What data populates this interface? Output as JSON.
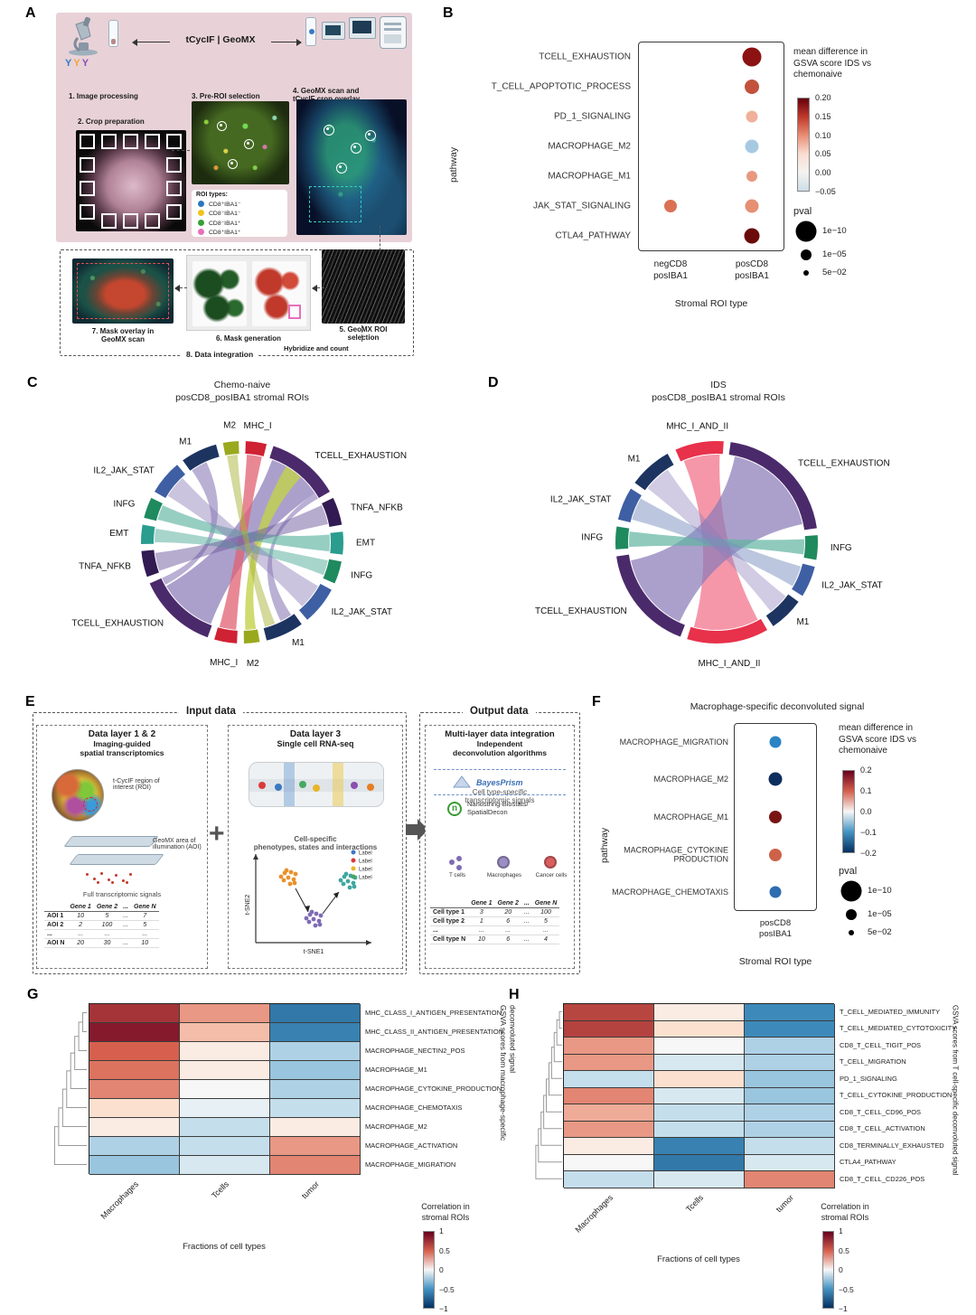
{
  "panelA": {
    "label": "A",
    "workflow_left": "tCycIF",
    "workflow_sep": "|",
    "workflow_right": "GeoMX",
    "steps": {
      "s1": "1. Image processing",
      "s2": "2. Crop preparation",
      "s3": "3. Pre-ROI selection",
      "s4": "4. GeoMX scan and\ntCycIF crop overlay",
      "s5": "5. GeoMX ROI\nselection",
      "s6": "6. Mask generation",
      "s7": "7. Mask overlay in\nGeoMX scan",
      "s8": "8. Data integration",
      "hybridize": "Hybridize and count"
    },
    "roi_types": {
      "title": "ROI types:",
      "items": [
        {
          "label": "CD8⁺IBA1⁻",
          "color": "#2878be"
        },
        {
          "label": "CD8⁻IBA1⁻",
          "color": "#f2c21c"
        },
        {
          "label": "CD8⁻IBA1⁺",
          "color": "#37a137"
        },
        {
          "label": "CD8⁺IBA1⁺",
          "color": "#e96fb9"
        }
      ]
    }
  },
  "panelB": {
    "label": "B",
    "chart_data": {
      "type": "dotplot",
      "ylabel": "pathway",
      "xlabel": "Stromal ROI type",
      "rows": [
        "TCELL_EXHAUSTION",
        "T_CELL_APOPTOTIC_PROCESS",
        "PD_1_SIGNALING",
        "MACROPHAGE_M2",
        "MACROPHAGE_M1",
        "JAK_STAT_SIGNALING",
        "CTLA4_PATHWAY"
      ],
      "cols": [
        "negCD8\nposIBA1",
        "posCD8\nposIBA1"
      ],
      "points": [
        {
          "row": 0,
          "col": 1,
          "mean_diff": 0.2,
          "size": 21,
          "color": "#8d1212"
        },
        {
          "row": 1,
          "col": 1,
          "mean_diff": 0.12,
          "size": 16,
          "color": "#c2523c"
        },
        {
          "row": 2,
          "col": 1,
          "mean_diff": 0.04,
          "size": 13,
          "color": "#f0b09b"
        },
        {
          "row": 3,
          "col": 1,
          "mean_diff": -0.04,
          "size": 15,
          "color": "#a6c9e2"
        },
        {
          "row": 4,
          "col": 1,
          "mean_diff": 0.06,
          "size": 12,
          "color": "#e8987f"
        },
        {
          "row": 5,
          "col": 0,
          "mean_diff": 0.09,
          "size": 14,
          "color": "#da7154"
        },
        {
          "row": 5,
          "col": 1,
          "mean_diff": 0.07,
          "size": 15,
          "color": "#e68f73"
        },
        {
          "row": 6,
          "col": 1,
          "mean_diff": 0.22,
          "size": 17,
          "color": "#6b0a0a"
        }
      ],
      "legend": {
        "color_title": "mean difference in\nGSVA score IDS vs\nchemonaive",
        "color_ticks": [
          "0.20",
          "0.15",
          "0.10",
          "0.05",
          "0.00",
          "−0.05"
        ],
        "gradient": [
          "#67000d",
          "#c0392b",
          "#e98d74",
          "#f9ddd2",
          "#f5f2f0",
          "#ccdde9"
        ],
        "size_title": "pval",
        "sizes": [
          {
            "label": "1e−10",
            "d": 23
          },
          {
            "label": "1e−05",
            "d": 12
          },
          {
            "label": "5e−02",
            "d": 6
          }
        ]
      }
    }
  },
  "panelC": {
    "label": "C",
    "title1": "Chemo-naive",
    "title2": "posCD8_posIBA1 stromal ROIs",
    "chart_data": {
      "type": "chord",
      "sectors": [
        {
          "label": "MHC_I",
          "start": 2,
          "end": 14,
          "color": "#cf2233"
        },
        {
          "label": "TCELL_EXHAUSTION",
          "start": 18,
          "end": 60,
          "color": "#4b2a6b"
        },
        {
          "label": "TNFA_NFKB",
          "start": 64,
          "end": 80,
          "color": "#321a52"
        },
        {
          "label": "EMT",
          "start": 84,
          "end": 97,
          "color": "#2a9d8f"
        },
        {
          "label": "INFG",
          "start": 101,
          "end": 114,
          "color": "#1e8a5e"
        },
        {
          "label": "IL2_JAK_STAT",
          "start": 118,
          "end": 140,
          "color": "#3e5fa3"
        },
        {
          "label": "M1",
          "start": 144,
          "end": 166,
          "color": "#1d3461"
        },
        {
          "label": "M2",
          "start": 170,
          "end": 179,
          "color": "#9aa81e"
        },
        {
          "label": "MHC_I",
          "start": 183,
          "end": 196,
          "color": "#cf2233"
        },
        {
          "label": "TCELL_EXHAUSTION",
          "start": 200,
          "end": 246,
          "color": "#4b2a6b"
        },
        {
          "label": "TNFA_NFKB",
          "start": 250,
          "end": 265,
          "color": "#321a52"
        },
        {
          "label": "EMT",
          "start": 269,
          "end": 280,
          "color": "#2a9d8f"
        },
        {
          "label": "INFG",
          "start": 284,
          "end": 296,
          "color": "#1e8a5e"
        },
        {
          "label": "IL2_JAK_STAT",
          "start": 300,
          "end": 320,
          "color": "#3e5fa3"
        },
        {
          "label": "M1",
          "start": 324,
          "end": 345,
          "color": "#1d3461"
        },
        {
          "label": "M2",
          "start": 349,
          "end": 358,
          "color": "#9aa81e"
        }
      ],
      "ribbons": [
        {
          "a": [
            201,
            240
          ],
          "b": [
            20,
            56
          ],
          "color": "#8b7cb8",
          "opacity": 0.72
        },
        {
          "a": [
            241,
            246
          ],
          "b": [
            325,
            336
          ],
          "color": "#8b7cb8",
          "opacity": 0.6
        },
        {
          "a": [
            56,
            60
          ],
          "b": [
            146,
            154
          ],
          "color": "#8b7cb8",
          "opacity": 0.6
        },
        {
          "a": [
            184,
            195
          ],
          "b": [
            3,
            13
          ],
          "color": "#e26071",
          "opacity": 0.75
        },
        {
          "a": [
            171,
            178
          ],
          "b": [
            30,
            42
          ],
          "color": "#c3d24a",
          "opacity": 0.8
        },
        {
          "a": [
            85,
            96
          ],
          "b": [
            285,
            295
          ],
          "color": "#5fb3a1",
          "opacity": 0.65
        },
        {
          "a": [
            270,
            279
          ],
          "b": [
            102,
            112
          ],
          "color": "#5fb3a1",
          "opacity": 0.55
        },
        {
          "a": [
            302,
            317
          ],
          "b": [
            120,
            137
          ],
          "color": "#8b7cb8",
          "opacity": 0.45
        },
        {
          "a": [
            251,
            263
          ],
          "b": [
            65,
            78
          ],
          "color": "#6d5a9e",
          "opacity": 0.5
        },
        {
          "a": [
            350,
            357
          ],
          "b": [
            158,
            165
          ],
          "color": "#aab43a",
          "opacity": 0.5
        }
      ]
    }
  },
  "panelD": {
    "label": "D",
    "title1": "IDS",
    "title2": "posCD8_posIBA1 stromal ROIs",
    "chart_data": {
      "type": "chord",
      "sectors": [
        {
          "label": "MHC_I_AND_II",
          "start": -24,
          "end": 4,
          "color": "#e8314a"
        },
        {
          "label": "TCELL_EXHAUSTION",
          "start": 8,
          "end": 82,
          "color": "#4b2a6b"
        },
        {
          "label": "INFG",
          "start": 86,
          "end": 100,
          "color": "#1e8a5e"
        },
        {
          "label": "IL2_JAK_STAT",
          "start": 104,
          "end": 122,
          "color": "#3e5fa3"
        },
        {
          "label": "M1",
          "start": 126,
          "end": 146,
          "color": "#1d3461"
        },
        {
          "label": "MHC_I_AND_II",
          "start": 150,
          "end": 197,
          "color": "#e8314a"
        },
        {
          "label": "TCELL_EXHAUSTION",
          "start": 201,
          "end": 262,
          "color": "#4b2a6b"
        },
        {
          "label": "INFG",
          "start": 266,
          "end": 279,
          "color": "#1e8a5e"
        },
        {
          "label": "IL2_JAK_STAT",
          "start": 283,
          "end": 302,
          "color": "#3e5fa3"
        },
        {
          "label": "M1",
          "start": 306,
          "end": 331,
          "color": "#1d3461"
        }
      ],
      "ribbons": [
        {
          "a": [
            152,
            195
          ],
          "b": [
            -22,
            2
          ],
          "color": "#f27d93",
          "opacity": 0.8
        },
        {
          "a": [
            205,
            258
          ],
          "b": [
            12,
            78
          ],
          "color": "#8b7cb8",
          "opacity": 0.72
        },
        {
          "a": [
            88,
            98
          ],
          "b": [
            267,
            277
          ],
          "color": "#5fb3a1",
          "opacity": 0.7
        },
        {
          "a": [
            106,
            120
          ],
          "b": [
            285,
            300
          ],
          "color": "#7a8fc0",
          "opacity": 0.5
        },
        {
          "a": [
            128,
            142
          ],
          "b": [
            308,
            326
          ],
          "color": "#8b7cb8",
          "opacity": 0.4
        }
      ]
    }
  },
  "panelE": {
    "label": "E",
    "header_input": "Input data",
    "header_output": "Output data",
    "plus_sign": "+",
    "box1": {
      "title": "Data layer 1 & 2",
      "subtitle": "Imaging-guided\nspatial transcriptomics",
      "roi_caption": "t-CycIF region of\ninterest (ROI)",
      "aoi_caption": "GeoMX area of\nillumination (AOI)",
      "signals_caption": "Full transcriptomic signals",
      "table": {
        "headers": [
          "",
          "Gene 1",
          "Gene 2",
          "...",
          "Gene N"
        ],
        "rows": [
          [
            "AOI 1",
            "10",
            "5",
            "...",
            "7"
          ],
          [
            "AOI 2",
            "2",
            "100",
            "...",
            "5"
          ],
          [
            "...",
            "...",
            "...",
            "",
            "..."
          ],
          [
            "AOI N",
            "20",
            "30",
            "...",
            "10"
          ]
        ]
      }
    },
    "box2": {
      "title": "Data layer 3",
      "subtitle": "Single cell RNA-seq",
      "caption": "Cell-specific\nphenotypes, states and interactions",
      "tsne_x": "t-SNE1",
      "tsne_y": "t-SNE2",
      "legend_label": "Label",
      "legend_colors": [
        "#3b78c3",
        "#d93a3a",
        "#e8b52a",
        "#48a860"
      ],
      "cell_colors": [
        "#d93a3a",
        "#3b78c3",
        "#48a860",
        "#e8b52a",
        "#8a4fb0",
        "#e67e22"
      ]
    },
    "box3": {
      "title": "Multi-layer data integration",
      "subtitle": "Independent\ndeconvolution algorithms",
      "algo1": "BayesPrism",
      "algo2_logo": "n",
      "algo2_line1": "Nanostring-Biostats/",
      "algo2_line2": "SpatialDecon",
      "signals_caption": "Cell type-specific\ntranscriptomic signals",
      "cells": [
        {
          "label": "T cells",
          "color": "#7e6bb5"
        },
        {
          "label": "Macrophages",
          "color": "#9b8ec4"
        },
        {
          "label": "Cancer cells",
          "color": "#d95f5f"
        }
      ],
      "table": {
        "headers": [
          "",
          "Gene 1",
          "Gene 2",
          "...",
          "Gene N"
        ],
        "rows": [
          [
            "Cell type 1",
            "3",
            "20",
            "...",
            "100"
          ],
          [
            "Cell type 2",
            "1",
            "6",
            "...",
            "5"
          ],
          [
            "...",
            "...",
            "...",
            "",
            "..."
          ],
          [
            "Cell type N",
            "10",
            "6",
            "...",
            "4"
          ]
        ]
      }
    }
  },
  "panelF": {
    "label": "F",
    "title": "Macrophage-specific deconvoluted signal",
    "chart_data": {
      "type": "dotplot",
      "ylabel": "pathway",
      "xlabel": "Stromal ROI type",
      "sig_marker": "*",
      "rows": [
        "MACROPHAGE_MIGRATION",
        "MACROPHAGE_M2",
        "MACROPHAGE_M1",
        "MACROPHAGE_CYTOKINE\nPRODUCTION",
        "MACROPHAGE_CHEMOTAXIS"
      ],
      "cols": [
        "posCD8\nposIBA1"
      ],
      "points": [
        {
          "row": 0,
          "col": 0,
          "mean_diff": -0.15,
          "size": 13,
          "color": "#2b83c4"
        },
        {
          "row": 1,
          "col": 0,
          "mean_diff": -0.22,
          "size": 15,
          "color": "#0d2d5e"
        },
        {
          "row": 2,
          "col": 0,
          "mean_diff": 0.2,
          "size": 14,
          "color": "#7a1414"
        },
        {
          "row": 3,
          "col": 0,
          "mean_diff": 0.12,
          "size": 14,
          "color": "#cd6249"
        },
        {
          "row": 4,
          "col": 0,
          "mean_diff": -0.13,
          "size": 13,
          "color": "#2f6db1"
        }
      ],
      "legend": {
        "color_title": "mean difference in\nGSVA score IDS vs\nchemonaive",
        "color_ticks": [
          "0.2",
          "0.1",
          "0.0",
          "−0.1",
          "−0.2"
        ],
        "gradient": [
          "#67001f",
          "#d6604d",
          "#f7f7f7",
          "#4393c3",
          "#053061"
        ],
        "size_title": "pval",
        "sizes": [
          {
            "label": "1e−10",
            "d": 23
          },
          {
            "label": "1e−05",
            "d": 12
          },
          {
            "label": "5e−02",
            "d": 6
          }
        ]
      }
    }
  },
  "panelG": {
    "label": "G",
    "chart_data": {
      "type": "heatmap",
      "cols": [
        "Macrophages",
        "Tcells",
        "tumor"
      ],
      "rows": [
        "MHC_CLASS_I_ANTIGEN_PRESENTATION",
        "MHC_CLASS_II_ANTIGEN_PRESENTATION",
        "MACROPHAGE_NECTIN2_POS",
        "MACROPHAGE_M1",
        "MACROPHAGE_CYTOKINE_PRODUCTION",
        "MACROPHAGE_CHEMOTAXIS",
        "MACROPHAGE_M2",
        "MACROPHAGE_ACTIVATION",
        "MACROPHAGE_MIGRATION"
      ],
      "values": [
        [
          0.7,
          0.3,
          -0.6
        ],
        [
          0.85,
          0.2,
          -0.55
        ],
        [
          0.45,
          0.05,
          -0.2
        ],
        [
          0.4,
          0.05,
          -0.25
        ],
        [
          0.35,
          0.0,
          -0.2
        ],
        [
          0.1,
          -0.05,
          -0.15
        ],
        [
          0.05,
          -0.15,
          0.05
        ],
        [
          -0.2,
          -0.15,
          0.3
        ],
        [
          -0.25,
          -0.1,
          0.35
        ]
      ],
      "xlabel": "Fractions of cell types",
      "right_label": "GSVA scores from macrophage-specific deconvoluted signal",
      "legend": {
        "title": "Correlation in\nstromal ROIs",
        "ticks": [
          "1",
          "0.5",
          "0",
          "−0.5",
          "−1"
        ],
        "gradient": [
          "#67001f",
          "#d6604d",
          "#f7f7f7",
          "#4393c3",
          "#053061"
        ]
      }
    }
  },
  "panelH": {
    "label": "H",
    "chart_data": {
      "type": "heatmap",
      "cols": [
        "Macrophages",
        "Tcells",
        "tumor"
      ],
      "rows": [
        "T_CELL_MEDIATED_IMMUNITY",
        "T_CELL_MEDIATED_CYTOTOXICITY",
        "CD8_T_CELL_TIGIT_POS",
        "T_CELL_MIGRATION",
        "PD_1_SIGNALING",
        "T_CELL_CYTOKINE_PRODUCTION",
        "CD8_T_CELL_CD96_POS",
        "CD8_T_CELL_ACTIVATION",
        "CD8_TERMINALLY_EXHAUSTED",
        "CTLA4_PATHWAY",
        "CD8_T_CELL_CD226_POS"
      ],
      "values": [
        [
          0.6,
          0.05,
          -0.5
        ],
        [
          0.62,
          0.1,
          -0.5
        ],
        [
          0.3,
          0.0,
          -0.2
        ],
        [
          0.3,
          -0.1,
          -0.2
        ],
        [
          -0.15,
          0.1,
          -0.25
        ],
        [
          0.35,
          -0.1,
          -0.25
        ],
        [
          0.25,
          -0.15,
          -0.2
        ],
        [
          0.3,
          -0.15,
          -0.2
        ],
        [
          0.05,
          -0.55,
          -0.15
        ],
        [
          0.0,
          -0.6,
          -0.1
        ],
        [
          -0.15,
          -0.1,
          0.35
        ]
      ],
      "xlabel": "Fractions of cell types",
      "right_label": "GSVA scores from T cell-specific deconvoluted signal",
      "legend": {
        "title": "Correlation in\nstromal ROIs",
        "ticks": [
          "1",
          "0.5",
          "0",
          "−0.5",
          "−1"
        ],
        "gradient": [
          "#67001f",
          "#d6604d",
          "#f7f7f7",
          "#4393c3",
          "#053061"
        ]
      }
    }
  }
}
